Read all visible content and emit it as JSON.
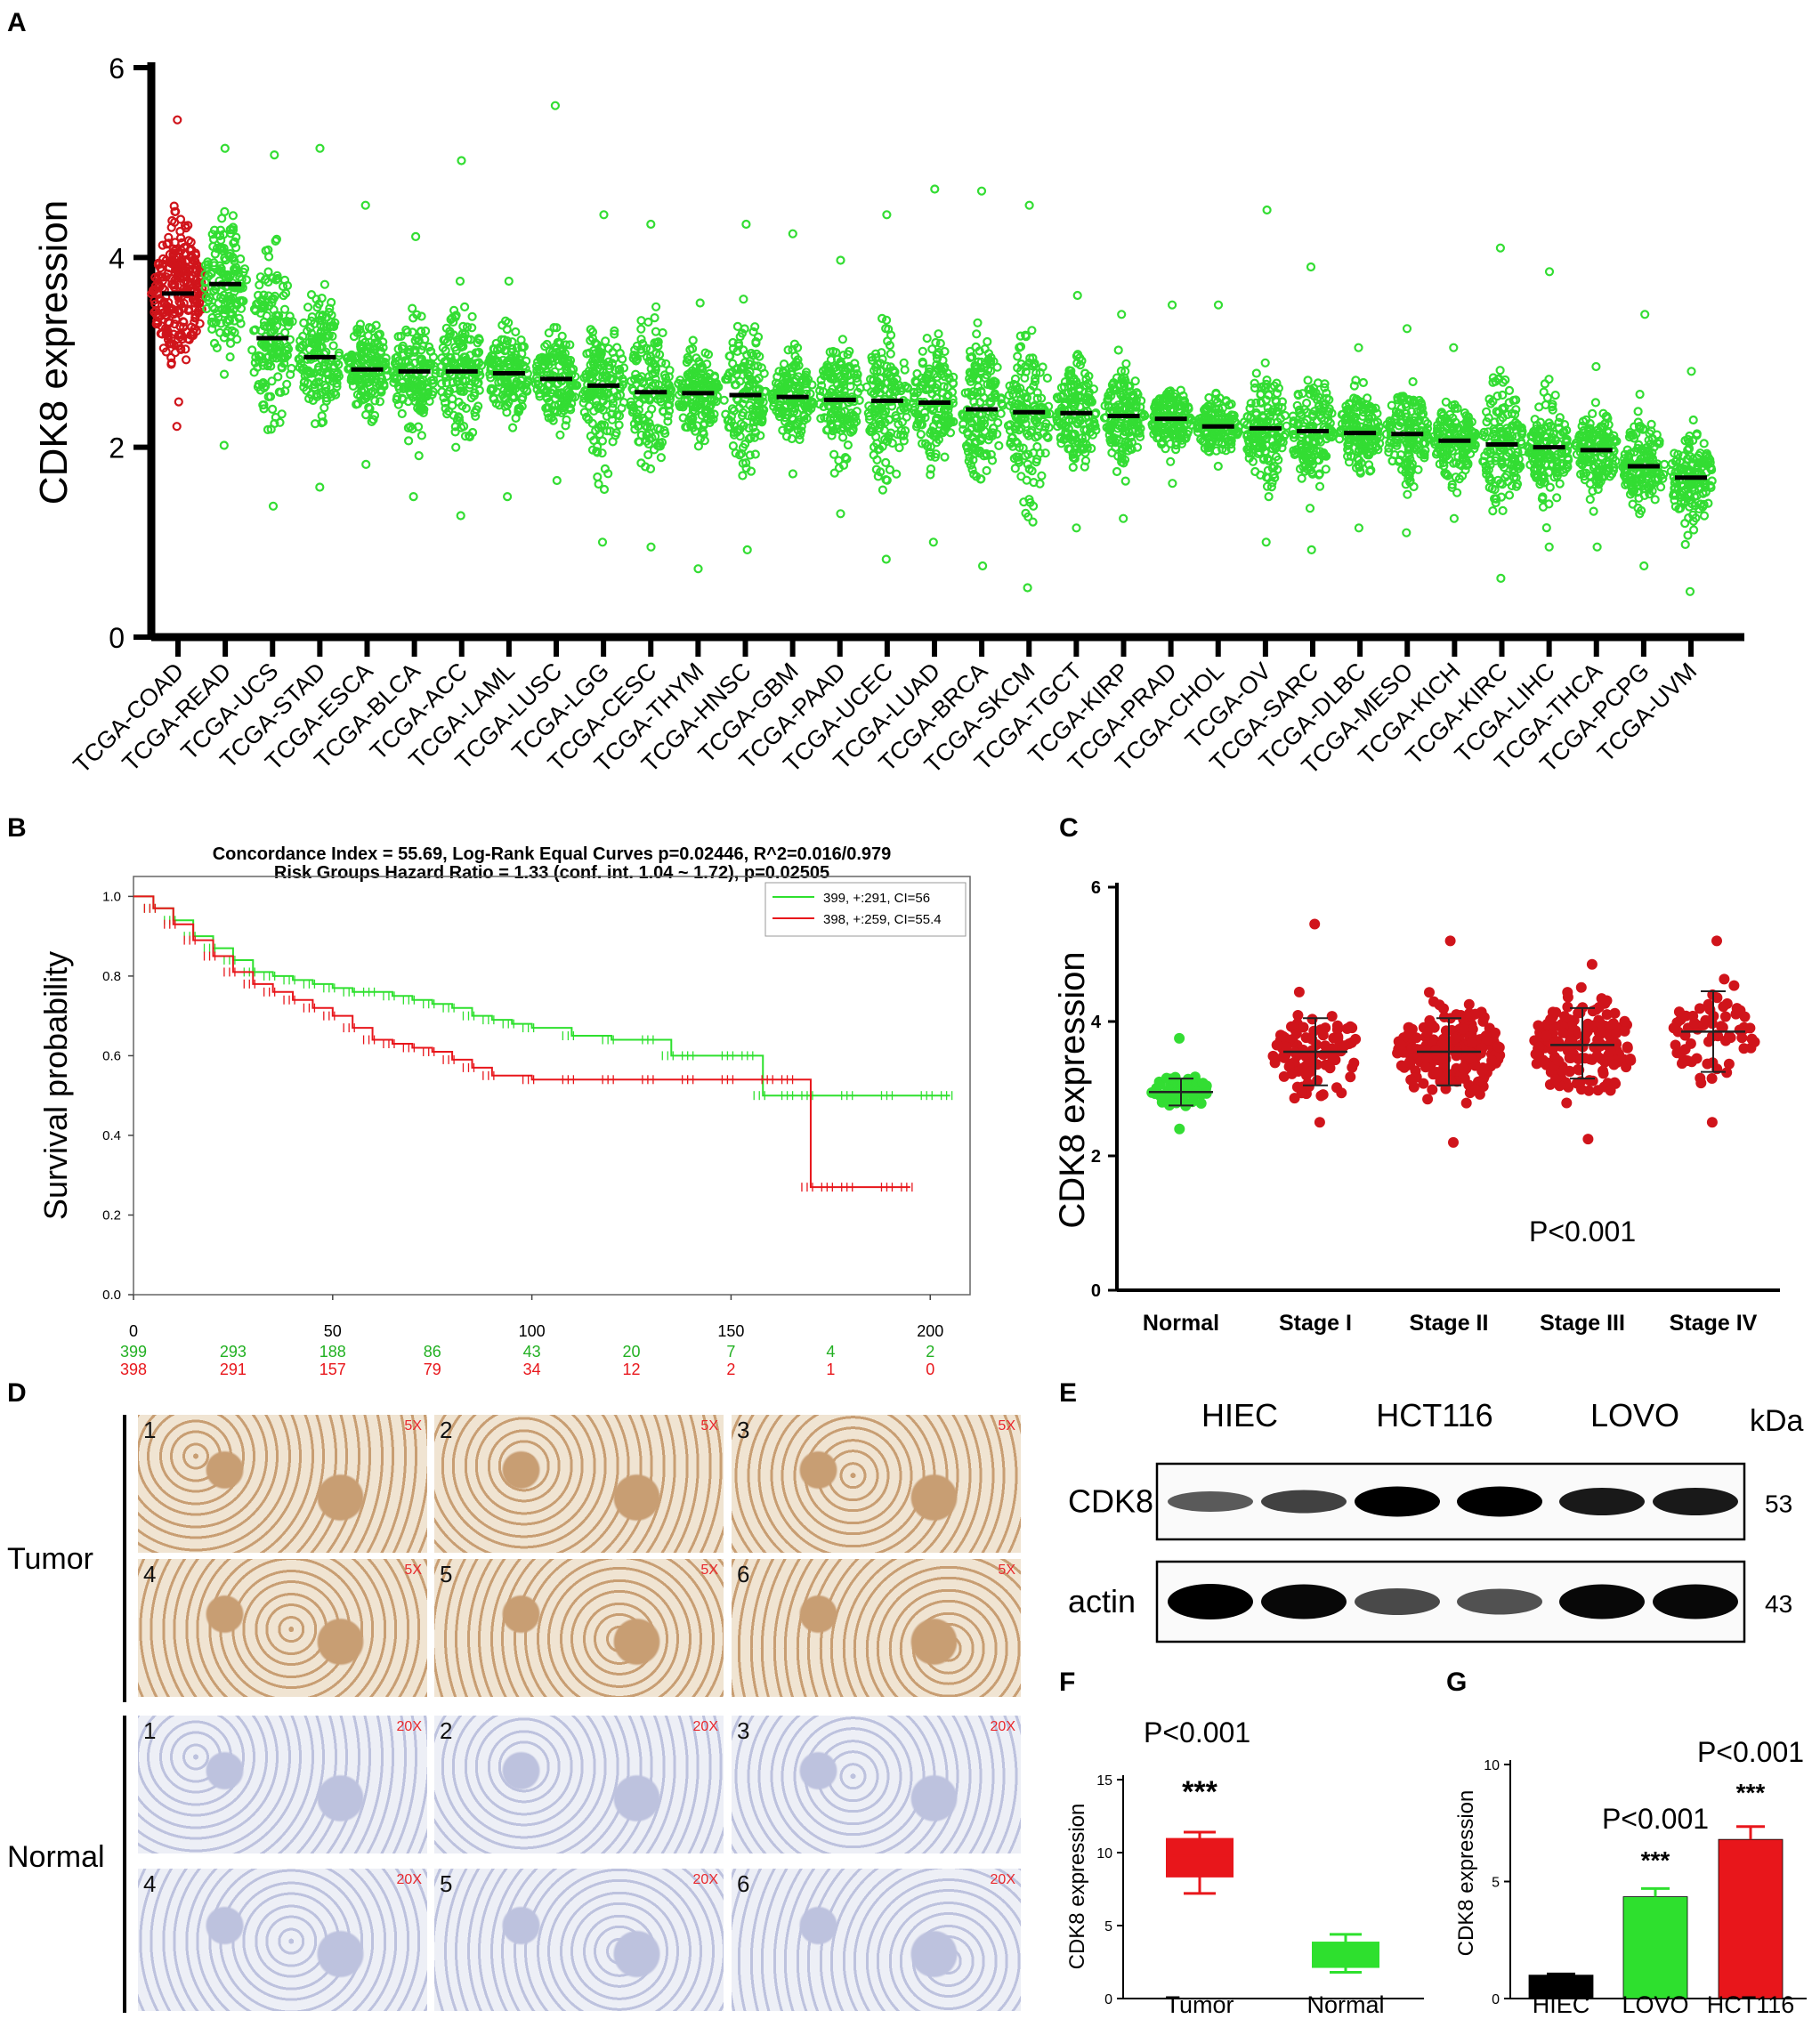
{
  "colors": {
    "red": "#e8161b",
    "green": "#2ee02e",
    "dot_red": "#d0141b",
    "dot_green": "#33dd33",
    "black": "#000000",
    "tissue_brown": "#c49668",
    "tissue_blue": "#b8bddc"
  },
  "panel_letters": [
    "A",
    "B",
    "C",
    "D",
    "E",
    "F",
    "G"
  ],
  "panelA": {
    "chart_data": {
      "type": "scatter",
      "title": "",
      "ylabel": "CDK8 expression",
      "ylim": [
        0,
        6
      ],
      "yticks": [
        "0",
        "2",
        "4",
        "6"
      ],
      "categories": [
        "TCGA-COAD",
        "TCGA-READ",
        "TCGA-UCS",
        "TCGA-STAD",
        "TCGA-ESCA",
        "TCGA-BLCA",
        "TCGA-ACC",
        "TCGA-LAML",
        "TCGA-LUSC",
        "TCGA-LGG",
        "TCGA-CESC",
        "TCGA-THYM",
        "TCGA-HNSC",
        "TCGA-GBM",
        "TCGA-PAAD",
        "TCGA-UCEC",
        "TCGA-LUAD",
        "TCGA-BRCA",
        "TCGA-SKCM",
        "TCGA-TGCT",
        "TCGA-KIRP",
        "TCGA-PRAD",
        "TCGA-CHOL",
        "TCGA-OV",
        "TCGA-SARC",
        "TCGA-DLBC",
        "TCGA-MESO",
        "TCGA-KICH",
        "TCGA-KIRC",
        "TCGA-LIHC",
        "TCGA-THCA",
        "TCGA-PCPG",
        "TCGA-UVM"
      ],
      "medians": [
        3.62,
        3.72,
        3.15,
        2.95,
        2.82,
        2.8,
        2.8,
        2.78,
        2.72,
        2.65,
        2.58,
        2.57,
        2.55,
        2.53,
        2.5,
        2.49,
        2.47,
        2.4,
        2.37,
        2.36,
        2.33,
        2.3,
        2.22,
        2.2,
        2.17,
        2.15,
        2.14,
        2.07,
        2.03,
        2.0,
        1.97,
        1.8,
        1.68
      ],
      "maxes": [
        5.45,
        5.15,
        5.08,
        5.15,
        4.55,
        4.22,
        5.02,
        3.75,
        5.6,
        4.45,
        4.35,
        3.52,
        4.35,
        4.25,
        3.97,
        4.45,
        4.72,
        4.7,
        4.55,
        3.6,
        3.4,
        3.5,
        3.5,
        4.5,
        3.9,
        3.05,
        3.25,
        3.05,
        4.1,
        3.85,
        2.85,
        3.4,
        2.8
      ],
      "mins": [
        2.22,
        2.02,
        1.38,
        1.58,
        1.82,
        1.48,
        1.28,
        1.48,
        1.65,
        1.0,
        0.95,
        0.72,
        0.92,
        1.72,
        1.3,
        0.82,
        1.0,
        0.75,
        0.52,
        1.15,
        1.25,
        1.62,
        1.8,
        1.0,
        0.92,
        1.15,
        1.1,
        1.25,
        0.62,
        0.95,
        0.95,
        0.75,
        0.48
      ],
      "highlight": "TCGA-COAD"
    }
  },
  "panelB": {
    "chart_data": {
      "type": "line",
      "title_line1": "Concordance Index = 55.69, Log-Rank Equal Curves p=0.02446, R^2=0.016/0.979",
      "title_line2": "Risk Groups Hazard Ratio = 1.33 (conf. int. 1.04 ~ 1.72), p=0.02505",
      "ylabel": "Survival probability",
      "xlim": [
        0,
        210
      ],
      "ylim": [
        0,
        1.05
      ],
      "xticks": [
        "0",
        "50",
        "100",
        "150",
        "200"
      ],
      "yticks": [
        "0.0",
        "0.2",
        "0.4",
        "0.6",
        "0.8",
        "1.0"
      ],
      "legend": [
        "399, +:291, CI=56",
        "398, +:259, CI=55.4"
      ],
      "series": [
        {
          "name": "399, +:291, CI=56",
          "color": "green",
          "x": [
            0,
            5,
            10,
            15,
            20,
            25,
            30,
            35,
            40,
            45,
            50,
            55,
            60,
            65,
            70,
            75,
            80,
            85,
            90,
            95,
            100,
            110,
            120,
            130,
            135,
            140,
            150,
            155,
            158,
            165,
            170,
            180,
            190,
            200,
            205
          ],
          "y": [
            1.0,
            0.97,
            0.94,
            0.9,
            0.87,
            0.84,
            0.81,
            0.8,
            0.79,
            0.78,
            0.77,
            0.76,
            0.76,
            0.75,
            0.74,
            0.73,
            0.72,
            0.7,
            0.69,
            0.68,
            0.67,
            0.65,
            0.64,
            0.64,
            0.6,
            0.6,
            0.6,
            0.6,
            0.5,
            0.5,
            0.5,
            0.5,
            0.5,
            0.5,
            0.5
          ]
        },
        {
          "name": "398, +:259, CI=55.4",
          "color": "red",
          "x": [
            0,
            5,
            10,
            15,
            20,
            25,
            30,
            35,
            40,
            45,
            50,
            55,
            60,
            65,
            70,
            75,
            80,
            85,
            90,
            100,
            110,
            120,
            130,
            140,
            150,
            160,
            165,
            170,
            175,
            180,
            190,
            195
          ],
          "y": [
            1.0,
            0.97,
            0.93,
            0.89,
            0.85,
            0.81,
            0.78,
            0.76,
            0.74,
            0.72,
            0.7,
            0.67,
            0.64,
            0.63,
            0.62,
            0.61,
            0.59,
            0.57,
            0.55,
            0.54,
            0.54,
            0.54,
            0.54,
            0.54,
            0.54,
            0.54,
            0.54,
            0.27,
            0.27,
            0.27,
            0.27,
            0.27
          ]
        }
      ],
      "at_risk": {
        "green": [
          "399",
          "293",
          "188",
          "86",
          "43",
          "20",
          "7",
          "4",
          "2"
        ],
        "red": [
          "398",
          "291",
          "157",
          "79",
          "34",
          "12",
          "2",
          "1",
          "0"
        ],
        "positions": [
          0,
          25,
          50,
          75,
          100,
          125,
          150,
          175,
          200
        ]
      }
    }
  },
  "panelC": {
    "chart_data": {
      "type": "scatter",
      "ylabel": "CDK8 expression",
      "ylim": [
        0,
        6
      ],
      "yticks": [
        "0",
        "2",
        "4",
        "6"
      ],
      "categories": [
        "Normal",
        "Stage I",
        "Stage II",
        "Stage III",
        "Stage IV"
      ],
      "means": [
        2.95,
        3.55,
        3.55,
        3.65,
        3.85
      ],
      "sd_high": [
        3.15,
        4.05,
        4.05,
        4.2,
        4.45
      ],
      "sd_low": [
        2.75,
        3.05,
        3.05,
        3.15,
        3.25
      ],
      "maxes": [
        3.75,
        5.45,
        5.2,
        4.85,
        5.2
      ],
      "mins": [
        2.4,
        2.5,
        2.2,
        2.25,
        2.5
      ],
      "annotation": "P<0.001"
    }
  },
  "panelD": {
    "row_labels": [
      "Tumor",
      "Normal"
    ],
    "tumor_tiles": [
      {
        "num": "1",
        "mag": "5X"
      },
      {
        "num": "2",
        "mag": "5X"
      },
      {
        "num": "3",
        "mag": "5X"
      },
      {
        "num": "4",
        "mag": "5X"
      },
      {
        "num": "5",
        "mag": "5X"
      },
      {
        "num": "6",
        "mag": "5X"
      }
    ],
    "normal_tiles": [
      {
        "num": "1",
        "mag": "20X"
      },
      {
        "num": "2",
        "mag": "20X"
      },
      {
        "num": "3",
        "mag": "20X"
      },
      {
        "num": "4",
        "mag": "20X"
      },
      {
        "num": "5",
        "mag": "20X"
      },
      {
        "num": "6",
        "mag": "20X"
      }
    ]
  },
  "panelE": {
    "lanes": [
      "HIEC",
      "HCT116",
      "LOVO"
    ],
    "unit": "kDa",
    "rows": [
      {
        "label": "CDK8",
        "kda": "53",
        "intensities": [
          0.45,
          0.6,
          1.0,
          1.0,
          0.85,
          0.85
        ]
      },
      {
        "label": "actin",
        "kda": "43",
        "intensities": [
          1.0,
          0.95,
          0.55,
          0.5,
          0.95,
          0.95
        ]
      }
    ]
  },
  "panelF": {
    "chart_data": {
      "type": "box",
      "ylabel": "CDK8 expression",
      "ylim": [
        0,
        15
      ],
      "yticks": [
        "0",
        "5",
        "10",
        "15"
      ],
      "categories": [
        "Tumor",
        "Normal"
      ],
      "boxes": [
        {
          "name": "Tumor",
          "min": 7.2,
          "q1": 8.3,
          "median": 9.8,
          "q3": 11.0,
          "max": 11.4,
          "color": "red"
        },
        {
          "name": "Normal",
          "min": 1.8,
          "q1": 2.1,
          "median": 2.7,
          "q3": 3.9,
          "max": 4.4,
          "color": "green"
        }
      ],
      "p_text": "P<0.001",
      "sig": "***"
    }
  },
  "panelG": {
    "chart_data": {
      "type": "bar",
      "ylabel": "CDK8 expression",
      "ylim": [
        0,
        10
      ],
      "yticks": [
        "0",
        "5",
        "10"
      ],
      "categories": [
        "HIEC",
        "LOVO",
        "HCT116"
      ],
      "values": [
        1.0,
        4.35,
        6.8
      ],
      "errors": [
        0.05,
        0.35,
        0.55
      ],
      "colors": [
        "black",
        "green",
        "red"
      ],
      "p_texts": [
        "P<0.001",
        "P<0.001"
      ],
      "sig": [
        "***",
        "***"
      ]
    }
  }
}
